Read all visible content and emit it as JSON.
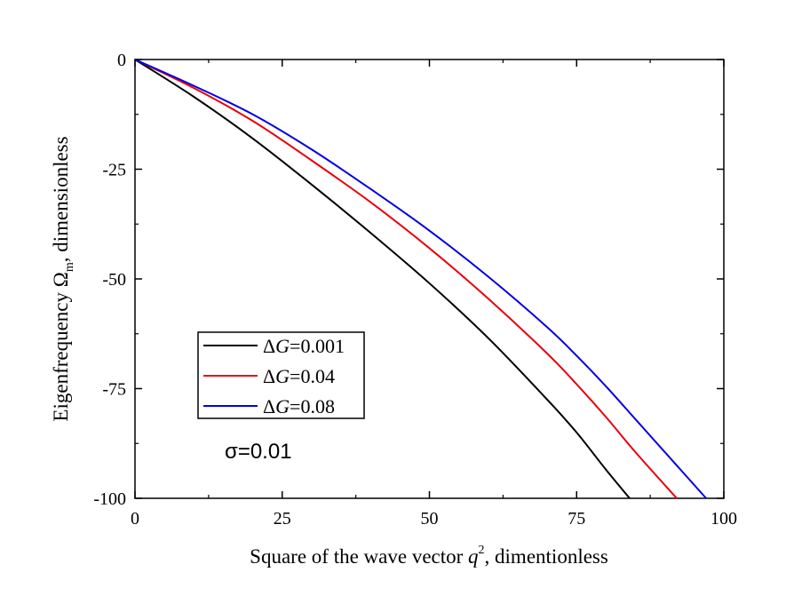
{
  "chart_data": {
    "type": "line",
    "xlabel": {
      "prefix": "Square of the wave vector ",
      "var": "q",
      "sup": "2",
      "suffix": ", dimentionless"
    },
    "ylabel": {
      "prefix": "Eigenfrequency ",
      "var": "Ω",
      "sub": "m",
      "suffix": ", dimensionless"
    },
    "xlim": [
      0,
      100
    ],
    "ylim": [
      -100,
      0
    ],
    "xticks": [
      0,
      25,
      50,
      75,
      100
    ],
    "xtick_labels": [
      "0",
      "25",
      "50",
      "75",
      "100"
    ],
    "yticks": [
      0,
      -25,
      -50,
      -75,
      -100
    ],
    "ytick_labels": [
      "0",
      "-25",
      "-50",
      "-75",
      "-100"
    ],
    "grid": false,
    "legend_position": "lower-left",
    "annotation": "σ=0.01",
    "series": [
      {
        "name": "ΔG=0.001",
        "legend_var": "G",
        "legend_value": "=0.001",
        "color": "#000000",
        "x": [
          0,
          10,
          20,
          30,
          40,
          50,
          60,
          70,
          75,
          80,
          84
        ],
        "y": [
          0,
          -8.5,
          -18,
          -28.5,
          -39.5,
          -51,
          -63.5,
          -77.5,
          -85,
          -93.5,
          -100
        ]
      },
      {
        "name": "ΔG=0.04",
        "legend_var": "G",
        "legend_value": "=0.04",
        "color": "#e8000b",
        "x": [
          0,
          10,
          20,
          30,
          40,
          50,
          60,
          70,
          75,
          80,
          85,
          92
        ],
        "y": [
          0,
          -6.5,
          -14,
          -23,
          -32.5,
          -43,
          -54.5,
          -67,
          -74,
          -81.5,
          -89.5,
          -100
        ]
      },
      {
        "name": "ΔG=0.08",
        "legend_var": "G",
        "legend_value": "=0.08",
        "color": "#0000e0",
        "x": [
          0,
          10,
          20,
          30,
          40,
          50,
          60,
          70,
          75,
          80,
          85,
          90,
          97
        ],
        "y": [
          0,
          -6,
          -12.5,
          -20.5,
          -29.5,
          -39,
          -49.5,
          -61,
          -67.5,
          -74.5,
          -82,
          -89.5,
          -100
        ]
      }
    ]
  }
}
